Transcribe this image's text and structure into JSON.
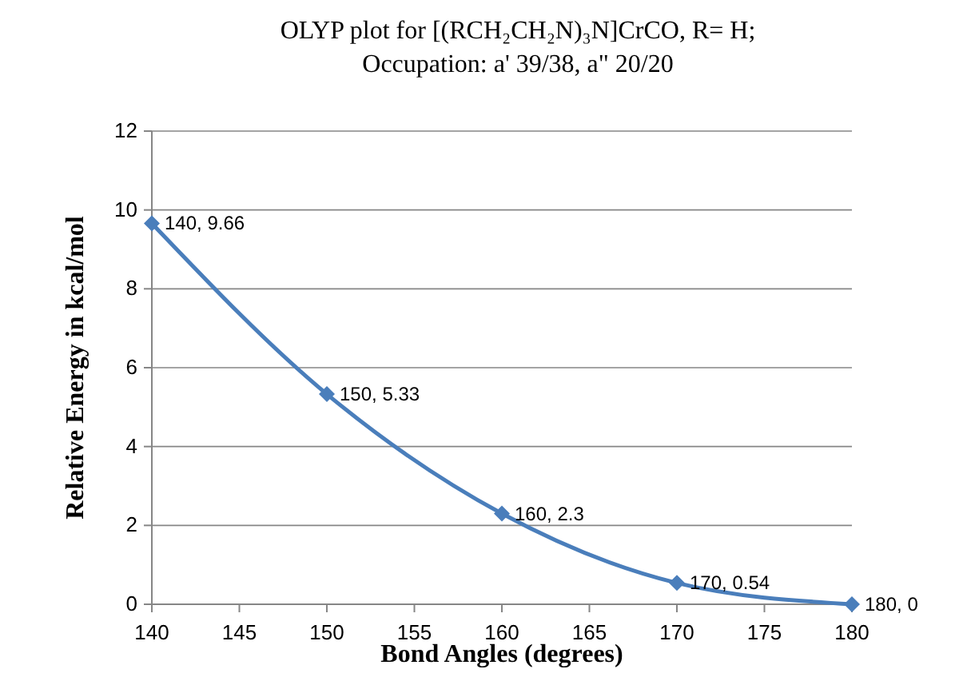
{
  "chart_data": {
    "type": "line",
    "title": "OLYP plot for [(RCH₂CH₂N)₃N]CrCO, R= H;\nOccupation: a' 39/38, a\" 20/20",
    "xlabel": "Bond Angles (degrees)",
    "ylabel": "Relative Energy in kcal/mol",
    "x": [
      140,
      150,
      160,
      170,
      180
    ],
    "series": [
      {
        "color": "#4a7ebb",
        "values": [
          9.66,
          5.33,
          2.3,
          0.54,
          0
        ],
        "value_labels": [
          "140, 9.66",
          "150, 5.33",
          "160, 2.3",
          "170, 0.54",
          "180, 0"
        ]
      }
    ],
    "xlim": [
      140,
      180
    ],
    "xticks": [
      140,
      145,
      150,
      155,
      160,
      165,
      170,
      175,
      180
    ],
    "ylim": [
      0,
      12
    ],
    "yticks": [
      0,
      2,
      4,
      6,
      8,
      10,
      12
    ],
    "grid": "y",
    "marker": "diamond",
    "line_style": "solid"
  }
}
